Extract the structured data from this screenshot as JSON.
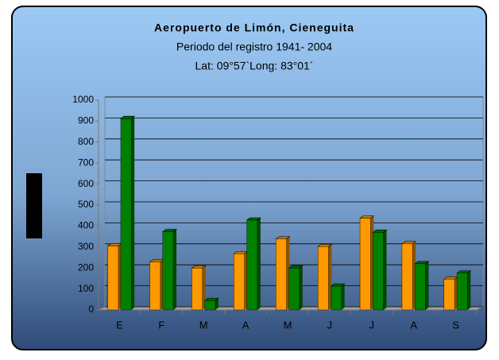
{
  "chart_data": {
    "type": "bar",
    "title": "Aeropuerto de Limón, Cieneguita",
    "subtitle": [
      "Periodo del registro 1941- 2004",
      "Lat: 09°57`Long: 83°01´"
    ],
    "categories": [
      "E",
      "F",
      "M",
      "A",
      "M",
      "J",
      "J",
      "A",
      "S"
    ],
    "series": [
      {
        "color": "#ff9900",
        "values": [
          305,
          228,
          200,
          268,
          338,
          302,
          437,
          315,
          147
        ]
      },
      {
        "color": "#008000",
        "values": [
          912,
          373,
          45,
          428,
          200,
          113,
          370,
          220,
          175
        ]
      }
    ],
    "ylim": [
      0,
      1000
    ],
    "yticks": [
      0,
      100,
      200,
      300,
      400,
      500,
      600,
      700,
      800,
      900,
      1000
    ],
    "grid": true
  }
}
